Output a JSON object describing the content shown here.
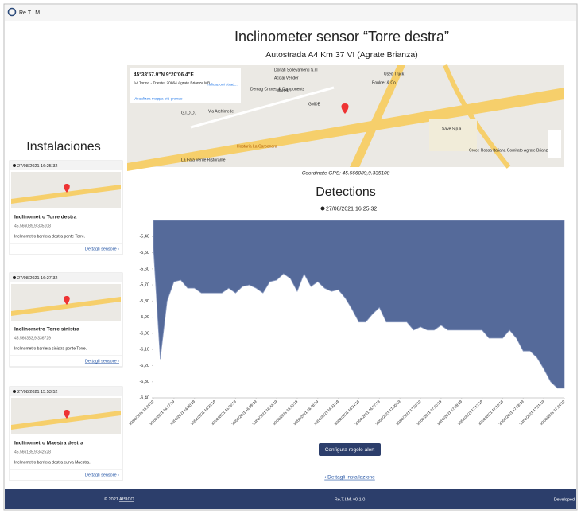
{
  "app": {
    "logo": "Re.T.I.M."
  },
  "header": {
    "title": "Inclinometer sensor “Torre destra”",
    "subtitle": "Autostrada A4 Km 37 VI (Agrate Brianza)"
  },
  "map": {
    "coords": "45°33'57.9\"N 9°20'06.4\"E",
    "address": "A4 Torino - Trieste, 20864 Agrate Brianza MB",
    "directions": "Indicazioni strad...",
    "larger": "Visualizza mappa più grande",
    "labels": [
      "Donati Sollevamenti S.r.l",
      "Acciai Vender",
      "Used Truck",
      "Boulder & Co",
      "Demag Cranes & Components",
      "Madek",
      "GMDE",
      "G.I.D.D.",
      "Via Archimede",
      "Hostaria La Carbonara",
      "Save S.p.a",
      "Croce Rossa Italiana Comitato Agrate Brianza",
      "La Fata Verde Ristorante"
    ]
  },
  "gps": "Coordinate GPS: 45.566089,9.335108",
  "sidebar": {
    "title": "Instalaciones",
    "cards": [
      {
        "date": "27/08/2021 16:25:32",
        "name": "Inclinometro Torre destra",
        "coords": "45.566089,9.335108",
        "description": "Inclinometro barriera destra ponte Torre.",
        "link": "Dettagli sensore ›"
      },
      {
        "date": "27/08/2021 16:27:32",
        "name": "Inclinometro Torre sinistra",
        "coords": "45.566333,9.336729",
        "description": "Inclinometro barriera sinistra ponte Torre.",
        "link": "Dettagli sensore ›"
      },
      {
        "date": "27/08/2021 15:53:52",
        "name": "Inclinometro Maestra destra",
        "coords": "45.566135,9.342528",
        "description": "Inclinometro barriera destra curva Maestra.",
        "link": "Dettagli sensore ›"
      }
    ]
  },
  "detections": {
    "title": "Detections",
    "date": "27/08/2021 16:25:32",
    "button": "Configura regole alert",
    "back": "‹ Dettagli installazione"
  },
  "footer": {
    "copyright": "© 2021 ",
    "company": "AISICO",
    "version": "Re.T.I.M. v0.1.0",
    "developed": "Developed"
  },
  "chart_data": {
    "type": "area",
    "color": "#556a9a",
    "categories": [
      "30/08/2021 16:24:19",
      null,
      null,
      "30/08/2021 16:27:19",
      null,
      null,
      "30/08/2021 16:30:19",
      null,
      null,
      "30/08/2021 16:33:19",
      null,
      null,
      "30/08/2021 16:36:19",
      null,
      null,
      "30/08/2021 16:39:19",
      null,
      null,
      "30/08/2021 16:42:19",
      null,
      null,
      "30/08/2021 16:45:19",
      null,
      null,
      "30/08/2021 16:48:19",
      null,
      null,
      "30/08/2021 16:51:19",
      null,
      null,
      "30/08/2021 16:54:19",
      null,
      null,
      "30/08/2021 16:57:19",
      null,
      null,
      "30/08/2021 17:00:19",
      null,
      null,
      "30/08/2021 17:03:19",
      null,
      null,
      "30/08/2021 17:06:19",
      null,
      null,
      "30/08/2021 17:09:19",
      null,
      null,
      "30/08/2021 17:12:19",
      null,
      null,
      "30/08/2021 17:15:19",
      null,
      null,
      "30/08/2021 17:18:19",
      null,
      null,
      "30/08/2021 17:21:19",
      null,
      null,
      "30/08/2021 17:24:19"
    ],
    "values": [
      -5.47,
      -6.16,
      -5.8,
      -5.68,
      -5.67,
      -5.72,
      -5.72,
      -5.75,
      -5.75,
      -5.75,
      -5.75,
      -5.72,
      -5.75,
      -5.71,
      -5.7,
      -5.72,
      -5.75,
      -5.68,
      -5.67,
      -5.63,
      -5.66,
      -5.74,
      -5.63,
      -5.71,
      -5.68,
      -5.72,
      -5.74,
      -5.73,
      -5.78,
      -5.85,
      -5.93,
      -5.93,
      -5.88,
      -5.84,
      -5.93,
      -5.93,
      -5.93,
      -5.93,
      -5.98,
      -5.96,
      -5.98,
      -5.98,
      -5.95,
      -5.98,
      -5.98,
      -5.98,
      -5.98,
      -5.98,
      -5.98,
      -6.03,
      -6.03,
      -6.03,
      -5.98,
      -6.03,
      -6.11,
      -6.11,
      -6.15,
      -6.22,
      -6.3,
      -6.34,
      -6.34
    ],
    "ylim": [
      -6.4,
      -5.3
    ],
    "yticks": [
      {
        "value": -6.4,
        "label": "-6,40"
      },
      {
        "value": -6.3,
        "label": "-6,30"
      },
      {
        "value": -6.2,
        "label": "-6,20"
      },
      {
        "value": -6.1,
        "label": "-6,10"
      },
      {
        "value": -6.0,
        "label": "-6,00"
      },
      {
        "value": -5.9,
        "label": "-5,90"
      },
      {
        "value": -5.8,
        "label": "-5,80"
      },
      {
        "value": -5.7,
        "label": "-5,70"
      },
      {
        "value": -5.6,
        "label": "-5,60"
      },
      {
        "value": -5.5,
        "label": "-5,50"
      },
      {
        "value": -5.4,
        "label": "-5,40"
      }
    ],
    "grid": false
  }
}
